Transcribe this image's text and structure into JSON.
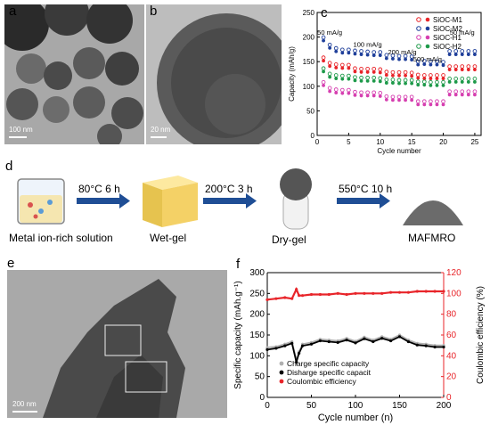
{
  "panels": {
    "a": {
      "label": "a",
      "scale": "100 nm"
    },
    "b": {
      "label": "b",
      "scale": "20 nm"
    },
    "c": {
      "label": "c"
    },
    "d": {
      "label": "d"
    },
    "e": {
      "label": "e",
      "scale": "200 nm"
    },
    "f": {
      "label": "f"
    }
  },
  "process": {
    "steps": [
      "Metal ion-rich solution",
      "Wet-gel",
      "Dry-gel",
      "MAFMRO"
    ],
    "conditions": [
      "80°C 6 h",
      "200°C 3 h",
      "550°C 10 h"
    ]
  },
  "chart_data": [
    {
      "type": "scatter",
      "panel": "c",
      "xlabel": "Cycle number",
      "ylabel": "Capacity (mAh/g)",
      "xlim": [
        0,
        26
      ],
      "ylim": [
        0,
        250
      ],
      "xticks": [
        0,
        5,
        10,
        15,
        20,
        25
      ],
      "yticks": [
        0,
        50,
        100,
        150,
        200,
        250
      ],
      "rate_labels": [
        "50 mA/g",
        "100 mA/g",
        "200 mA/g",
        "500 mA/g",
        "50 mA/g"
      ],
      "legend": [
        "SiOC-M1",
        "SiOC-M2",
        "SiOC-H1",
        "SiOC-H2"
      ],
      "series_colors": {
        "SiOC-M1": "#e8252a",
        "SiOC-M2": "#1f3f9a",
        "SiOC-H1": "#d63fb0",
        "SiOC-H2": "#1e9a4a"
      },
      "series": [
        {
          "name": "SiOC-M2",
          "x": [
            1,
            2,
            3,
            4,
            5,
            6,
            7,
            8,
            9,
            10,
            11,
            12,
            13,
            14,
            15,
            16,
            17,
            18,
            19,
            20,
            21,
            22,
            23,
            24,
            25
          ],
          "y": [
            196,
            181,
            174,
            171,
            171,
            169,
            168,
            167,
            166,
            166,
            160,
            159,
            158,
            158,
            157,
            147,
            148,
            147,
            147,
            146,
            168,
            168,
            168,
            168,
            168
          ]
        },
        {
          "name": "SiOC-M1",
          "x": [
            1,
            2,
            3,
            4,
            5,
            6,
            7,
            8,
            9,
            10,
            11,
            12,
            13,
            14,
            15,
            16,
            17,
            18,
            19,
            20,
            21,
            22,
            23,
            24,
            25
          ],
          "y": [
            155,
            144,
            141,
            140,
            140,
            133,
            132,
            132,
            132,
            131,
            126,
            125,
            125,
            125,
            124,
            120,
            119,
            119,
            119,
            119,
            137,
            137,
            137,
            137,
            137
          ]
        },
        {
          "name": "SiOC-H2",
          "x": [
            1,
            2,
            3,
            4,
            5,
            6,
            7,
            8,
            9,
            10,
            11,
            12,
            13,
            14,
            15,
            16,
            17,
            18,
            19,
            20,
            21,
            22,
            23,
            24,
            25
          ],
          "y": [
            133,
            122,
            119,
            118,
            118,
            115,
            114,
            114,
            114,
            113,
            110,
            110,
            109,
            109,
            109,
            106,
            106,
            105,
            105,
            105,
            112,
            112,
            112,
            112,
            112
          ]
        },
        {
          "name": "SiOC-H1",
          "x": [
            1,
            2,
            3,
            4,
            5,
            6,
            7,
            8,
            9,
            10,
            11,
            12,
            13,
            14,
            15,
            16,
            17,
            18,
            19,
            20,
            21,
            22,
            23,
            24,
            25
          ],
          "y": [
            105,
            93,
            90,
            89,
            89,
            85,
            84,
            84,
            84,
            83,
            76,
            75,
            75,
            75,
            75,
            66,
            66,
            66,
            66,
            66,
            86,
            86,
            86,
            86,
            86
          ]
        }
      ]
    },
    {
      "type": "line",
      "panel": "f",
      "xlabel": "Cycle number (n)",
      "ylabel": "Specific capacity (mAh.g⁻¹)",
      "y2label": "Coulombic efficiency (%)",
      "xlim": [
        0,
        200
      ],
      "ylim": [
        0,
        300
      ],
      "y2lim": [
        0,
        120
      ],
      "xticks": [
        0,
        50,
        100,
        150,
        200
      ],
      "yticks": [
        0,
        50,
        100,
        150,
        200,
        250,
        300
      ],
      "y2ticks": [
        0,
        20,
        40,
        60,
        80,
        100,
        120
      ],
      "legend": [
        "Charge specific capacity",
        "Disharge specific capacit",
        "Coulombic efficiency"
      ],
      "series": [
        {
          "name": "Charge specific capacity",
          "color": "#b0b0b0",
          "x": [
            0,
            10,
            20,
            28,
            33,
            36,
            40,
            50,
            60,
            70,
            80,
            90,
            100,
            110,
            120,
            130,
            140,
            150,
            160,
            170,
            180,
            190,
            200
          ],
          "y": [
            120,
            122,
            128,
            134,
            90,
            110,
            128,
            132,
            140,
            138,
            136,
            142,
            135,
            145,
            138,
            146,
            140,
            150,
            138,
            130,
            128,
            125,
            125
          ]
        },
        {
          "name": "Disharge specific capacit",
          "color": "#000000",
          "x": [
            0,
            10,
            20,
            28,
            33,
            36,
            40,
            50,
            60,
            70,
            80,
            90,
            100,
            110,
            120,
            130,
            140,
            150,
            160,
            170,
            180,
            190,
            200
          ],
          "y": [
            115,
            118,
            124,
            130,
            85,
            106,
            124,
            128,
            136,
            134,
            132,
            138,
            131,
            141,
            134,
            142,
            136,
            146,
            134,
            126,
            124,
            121,
            121
          ]
        },
        {
          "name": "Coulombic efficiency",
          "color": "#e8252a",
          "x": [
            0,
            10,
            20,
            28,
            33,
            36,
            40,
            50,
            60,
            70,
            80,
            90,
            100,
            110,
            120,
            130,
            140,
            150,
            160,
            170,
            180,
            190,
            200
          ],
          "y": [
            94,
            95,
            96,
            95,
            104,
            98,
            98,
            99,
            99,
            99,
            100,
            99,
            100,
            100,
            100,
            100,
            101,
            101,
            101,
            102,
            102,
            102,
            102
          ]
        }
      ]
    }
  ]
}
